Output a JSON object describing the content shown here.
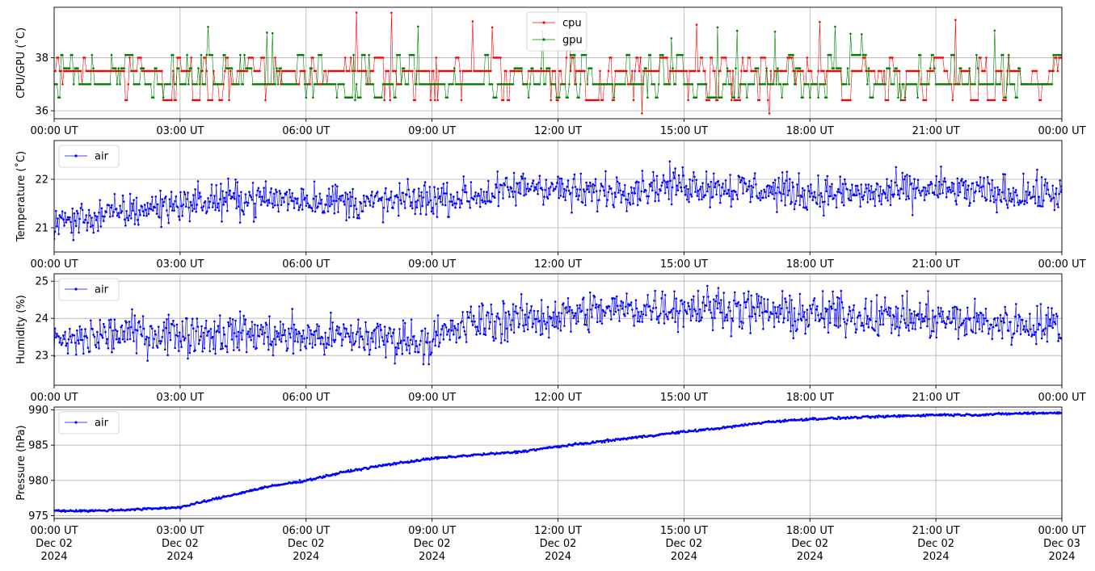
{
  "chart_data": [
    {
      "type": "line",
      "ylabel": "CPU/GPU (˚C)",
      "xlim": [
        "2024-12-02T00:00Z",
        "2024-12-03T00:00Z"
      ],
      "ylim": [
        35.7,
        39.9
      ],
      "yticks": [
        36,
        38
      ],
      "xtick_labels": [
        "00:00 UT",
        "03:00 UT",
        "06:00 UT",
        "09:00 UT",
        "12:00 UT",
        "15:00 UT",
        "18:00 UT",
        "21:00 UT",
        "00:00 UT"
      ],
      "grid": true,
      "legend_placement": "upper-center",
      "series": [
        {
          "name": "cpu",
          "color": "#ff0000",
          "marker": "dot",
          "levels": [
            36.4,
            37.0,
            37.5,
            38.0
          ],
          "typical": 37.5,
          "range": [
            35.9,
            39.7
          ]
        },
        {
          "name": "gpu",
          "color": "#008000",
          "marker": "dot",
          "levels": [
            36.5,
            37.0,
            37.6,
            38.1
          ],
          "typical": 37.0,
          "range": [
            36.4,
            39.3
          ]
        }
      ]
    },
    {
      "type": "line",
      "ylabel": "Temperature (˚C)",
      "ylim": [
        20.5,
        22.8
      ],
      "yticks": [
        21,
        22
      ],
      "xtick_labels": [
        "00:00 UT",
        "03:00 UT",
        "06:00 UT",
        "09:00 UT",
        "12:00 UT",
        "15:00 UT",
        "18:00 UT",
        "21:00 UT",
        "00:00 UT"
      ],
      "grid": true,
      "legend_placement": "upper-left",
      "series": [
        {
          "name": "air",
          "color": "#0000ff",
          "marker": "dot",
          "x_hours": [
            0,
            1.5,
            3,
            4.5,
            6,
            7.5,
            9,
            10.5,
            11.5,
            12.5,
            13.5,
            15,
            16.5,
            18,
            19.5,
            21,
            22.5,
            24
          ],
          "y": [
            21.1,
            21.3,
            21.5,
            21.6,
            21.6,
            21.5,
            21.6,
            21.7,
            21.9,
            21.7,
            21.8,
            21.9,
            21.8,
            21.7,
            21.7,
            21.8,
            21.7,
            21.7
          ]
        }
      ]
    },
    {
      "type": "line",
      "ylabel": "Humidity (%)",
      "ylim": [
        22.2,
        25.2
      ],
      "yticks": [
        23,
        24,
        25
      ],
      "xtick_labels": [
        "00:00 UT",
        "03:00 UT",
        "06:00 UT",
        "09:00 UT",
        "12:00 UT",
        "15:00 UT",
        "18:00 UT",
        "21:00 UT",
        "00:00 UT"
      ],
      "grid": true,
      "legend_placement": "upper-left",
      "series": [
        {
          "name": "air",
          "color": "#0000ff",
          "marker": "dot",
          "x_hours": [
            0,
            1.5,
            3,
            4.5,
            6,
            7.5,
            9,
            10,
            11.5,
            13,
            14.5,
            16,
            17.5,
            19,
            20.5,
            22,
            24
          ],
          "y": [
            23.3,
            23.6,
            23.6,
            23.6,
            23.5,
            23.5,
            23.4,
            23.9,
            24.0,
            24.2,
            24.3,
            24.3,
            24.1,
            24.1,
            24.0,
            23.9,
            23.8
          ]
        }
      ]
    },
    {
      "type": "line",
      "ylabel": "Pressure (hPa)",
      "ylim": [
        974.6,
        990.4
      ],
      "yticks": [
        975,
        980,
        985,
        990
      ],
      "xtick_labels": [
        "00:00 UT\nDec 02\n2024",
        "03:00 UT\nDec 02\n2024",
        "06:00 UT\nDec 02\n2024",
        "09:00 UT\nDec 02\n2024",
        "12:00 UT\nDec 02\n2024",
        "15:00 UT\nDec 02\n2024",
        "18:00 UT\nDec 02\n2024",
        "21:00 UT\nDec 02\n2024",
        "00:00 UT\nDec 03\n2024"
      ],
      "grid": true,
      "legend_placement": "upper-left",
      "series": [
        {
          "name": "air",
          "color": "#0000ff",
          "marker": "dot",
          "x_hours": [
            0,
            1,
            2,
            3,
            4,
            5,
            6,
            7,
            8,
            9,
            10,
            11,
            12,
            13,
            14,
            15,
            16,
            17,
            18,
            19,
            20,
            21,
            22,
            23,
            24
          ],
          "y": [
            975.7,
            975.7,
            975.9,
            976.2,
            977.6,
            979.0,
            980.0,
            981.3,
            982.3,
            983.1,
            983.6,
            984.0,
            984.8,
            985.5,
            986.2,
            986.9,
            987.5,
            988.3,
            988.7,
            988.9,
            989.1,
            989.3,
            989.3,
            989.5,
            989.6
          ]
        }
      ]
    }
  ]
}
